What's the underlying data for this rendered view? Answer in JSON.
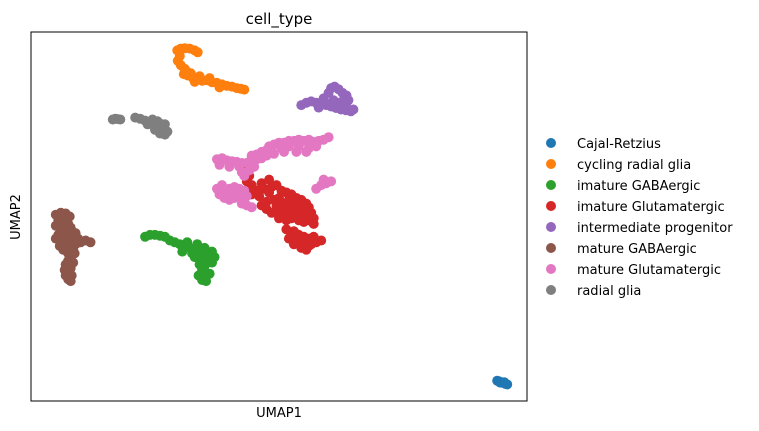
{
  "chart_data": {
    "type": "scatter",
    "title": "cell_type",
    "xlabel": "UMAP1",
    "ylabel": "UMAP2",
    "xlim": [
      0,
      100
    ],
    "ylim": [
      0,
      100
    ],
    "xticks": [],
    "yticks": [],
    "grid": false,
    "legend_placement": "right, outside plot",
    "series": [
      {
        "name": "Cajal-Retzius",
        "color": "#1f77b4",
        "points": [
          [
            94.0,
            5.5
          ],
          [
            94.4,
            5.3
          ],
          [
            94.8,
            5.1
          ],
          [
            95.2,
            4.9
          ],
          [
            95.6,
            4.7
          ],
          [
            96.0,
            4.5
          ],
          [
            94.6,
            5.0
          ],
          [
            95.4,
            5.1
          ]
        ]
      },
      {
        "name": "cycling radial glia",
        "color": "#ff7f0e",
        "points": [
          [
            29.5,
            95.0
          ],
          [
            30.2,
            95.5
          ],
          [
            31.0,
            95.6
          ],
          [
            32.0,
            95.5
          ],
          [
            33.0,
            95.0
          ],
          [
            33.6,
            94.5
          ],
          [
            30.0,
            93.5
          ],
          [
            29.6,
            92.2
          ],
          [
            30.2,
            91.0
          ],
          [
            31.0,
            90.0
          ],
          [
            31.5,
            89.2
          ],
          [
            30.8,
            88.6
          ],
          [
            31.6,
            88.2
          ],
          [
            32.2,
            88.8
          ],
          [
            32.6,
            87.6
          ],
          [
            33.5,
            87.4
          ],
          [
            34.5,
            86.8
          ],
          [
            35.5,
            86.9
          ],
          [
            36.5,
            86.4
          ],
          [
            37.5,
            86.2
          ],
          [
            38.5,
            85.8
          ],
          [
            39.5,
            85.4
          ],
          [
            40.5,
            85.2
          ],
          [
            41.5,
            84.8
          ],
          [
            42.3,
            84.6
          ],
          [
            43.0,
            84.4
          ],
          [
            34.0,
            88.0
          ],
          [
            36.0,
            87.5
          ],
          [
            33.0,
            86.5
          ],
          [
            38.0,
            85.0
          ]
        ]
      },
      {
        "name": "imature GABAergic",
        "color": "#2ca02c",
        "points": [
          [
            23.0,
            44.5
          ],
          [
            24.0,
            45.0
          ],
          [
            25.0,
            45.0
          ],
          [
            26.0,
            44.8
          ],
          [
            27.0,
            44.5
          ],
          [
            28.0,
            43.5
          ],
          [
            29.0,
            43.0
          ],
          [
            30.0,
            42.5
          ],
          [
            31.0,
            41.8
          ],
          [
            32.0,
            41.5
          ],
          [
            33.0,
            41.0
          ],
          [
            34.0,
            40.5
          ],
          [
            35.0,
            40.2
          ],
          [
            36.0,
            39.5
          ],
          [
            37.0,
            39.0
          ],
          [
            35.5,
            38.0
          ],
          [
            34.5,
            38.5
          ],
          [
            33.0,
            39.0
          ],
          [
            36.5,
            37.5
          ],
          [
            34.0,
            37.0
          ],
          [
            32.5,
            40.0
          ],
          [
            30.5,
            40.5
          ],
          [
            31.5,
            43.0
          ],
          [
            33.5,
            42.5
          ],
          [
            35.0,
            41.5
          ],
          [
            36.5,
            40.5
          ],
          [
            35.0,
            36.5
          ],
          [
            34.5,
            35.5
          ],
          [
            34.8,
            34.5
          ],
          [
            35.2,
            33.5
          ],
          [
            34.5,
            32.8
          ],
          [
            35.3,
            32.5
          ],
          [
            33.8,
            34.0
          ],
          [
            36.0,
            34.5
          ]
        ]
      },
      {
        "name": "imature Glutamatergic",
        "color": "#d62728",
        "points": [
          [
            43.5,
            63.0
          ],
          [
            44.0,
            61.0
          ],
          [
            43.5,
            59.5
          ],
          [
            44.5,
            58.5
          ],
          [
            43.5,
            57.0
          ],
          [
            44.5,
            56.0
          ],
          [
            46.0,
            55.5
          ],
          [
            47.5,
            54.0
          ],
          [
            49.0,
            54.5
          ],
          [
            49.5,
            53.0
          ],
          [
            47.0,
            57.5
          ],
          [
            48.5,
            58.0
          ],
          [
            49.5,
            58.5
          ],
          [
            48.0,
            56.5
          ],
          [
            50.5,
            57.0
          ],
          [
            51.5,
            56.5
          ],
          [
            52.5,
            56.0
          ],
          [
            53.5,
            55.0
          ],
          [
            54.5,
            54.5
          ],
          [
            55.5,
            53.5
          ],
          [
            56.0,
            52.5
          ],
          [
            55.5,
            51.5
          ],
          [
            54.5,
            51.0
          ],
          [
            53.5,
            50.5
          ],
          [
            52.5,
            51.0
          ],
          [
            51.5,
            50.5
          ],
          [
            50.5,
            51.5
          ],
          [
            49.5,
            52.0
          ],
          [
            53.0,
            53.0
          ],
          [
            51.0,
            53.5
          ],
          [
            52.0,
            54.5
          ],
          [
            46.5,
            53.0
          ],
          [
            47.5,
            52.0
          ],
          [
            48.5,
            51.0
          ],
          [
            50.0,
            49.5
          ],
          [
            51.5,
            49.0
          ],
          [
            52.5,
            49.5
          ],
          [
            54.0,
            49.0
          ],
          [
            55.0,
            48.5
          ],
          [
            56.0,
            49.0
          ],
          [
            57.0,
            49.5
          ],
          [
            56.5,
            51.0
          ],
          [
            45.5,
            57.0
          ],
          [
            46.5,
            59.0
          ],
          [
            48.0,
            60.0
          ],
          [
            50.0,
            55.0
          ],
          [
            52.0,
            52.5
          ],
          [
            54.0,
            52.5
          ],
          [
            55.0,
            50.0
          ],
          [
            57.0,
            48.0
          ],
          [
            51.5,
            46.5
          ],
          [
            52.5,
            45.0
          ],
          [
            53.5,
            44.0
          ],
          [
            54.5,
            43.5
          ],
          [
            55.5,
            43.0
          ],
          [
            56.5,
            42.5
          ],
          [
            57.5,
            43.0
          ],
          [
            58.5,
            43.5
          ],
          [
            57.0,
            44.5
          ],
          [
            55.0,
            44.5
          ],
          [
            53.0,
            46.0
          ],
          [
            52.0,
            44.0
          ],
          [
            53.0,
            42.5
          ],
          [
            54.5,
            41.5
          ],
          [
            55.5,
            41.0
          ],
          [
            56.0,
            42.0
          ],
          [
            54.0,
            45.0
          ],
          [
            56.0,
            44.0
          ]
        ]
      },
      {
        "name": "intermediate progenitor",
        "color": "#9467bd",
        "points": [
          [
            54.5,
            80.2
          ],
          [
            55.5,
            80.8
          ],
          [
            56.5,
            81.2
          ],
          [
            57.5,
            80.8
          ],
          [
            58.5,
            80.5
          ],
          [
            59.5,
            80.2
          ],
          [
            60.5,
            79.8
          ],
          [
            61.5,
            79.4
          ],
          [
            62.5,
            79.0
          ],
          [
            63.5,
            78.8
          ],
          [
            64.5,
            78.5
          ],
          [
            65.0,
            79.0
          ],
          [
            60.0,
            83.5
          ],
          [
            60.5,
            84.8
          ],
          [
            61.2,
            85.2
          ],
          [
            62.0,
            84.5
          ],
          [
            62.8,
            83.5
          ],
          [
            63.6,
            82.8
          ],
          [
            64.0,
            81.5
          ],
          [
            63.5,
            80.5
          ],
          [
            59.0,
            82.0
          ],
          [
            61.0,
            81.5
          ],
          [
            62.5,
            81.0
          ],
          [
            58.0,
            79.5
          ],
          [
            60.0,
            80.5
          ],
          [
            62.0,
            80.0
          ]
        ]
      },
      {
        "name": "mature GABAergic",
        "color": "#8c564b",
        "points": [
          [
            5.0,
            50.5
          ],
          [
            6.0,
            51.0
          ],
          [
            7.0,
            50.8
          ],
          [
            7.8,
            50.0
          ],
          [
            5.5,
            49.0
          ],
          [
            6.5,
            48.5
          ],
          [
            7.5,
            48.0
          ],
          [
            8.0,
            47.0
          ],
          [
            5.0,
            47.5
          ],
          [
            6.0,
            46.5
          ],
          [
            7.0,
            46.0
          ],
          [
            5.5,
            45.0
          ],
          [
            6.5,
            44.5
          ],
          [
            7.5,
            44.0
          ],
          [
            8.5,
            44.5
          ],
          [
            9.0,
            45.5
          ],
          [
            5.0,
            44.0
          ],
          [
            6.0,
            43.0
          ],
          [
            7.0,
            42.5
          ],
          [
            8.0,
            42.0
          ],
          [
            9.0,
            42.5
          ],
          [
            10.0,
            43.0
          ],
          [
            11.0,
            43.5
          ],
          [
            12.0,
            43.0
          ],
          [
            8.5,
            41.0
          ],
          [
            7.5,
            40.0
          ],
          [
            8.0,
            39.0
          ],
          [
            7.5,
            38.0
          ],
          [
            8.5,
            37.5
          ],
          [
            7.0,
            37.0
          ],
          [
            8.0,
            36.0
          ],
          [
            7.5,
            35.0
          ],
          [
            8.2,
            34.0
          ],
          [
            7.0,
            34.0
          ],
          [
            7.5,
            33.0
          ],
          [
            8.0,
            32.5
          ],
          [
            6.8,
            35.5
          ],
          [
            6.5,
            41.0
          ],
          [
            5.8,
            42.0
          ],
          [
            8.8,
            40.0
          ],
          [
            9.5,
            44.0
          ],
          [
            6.2,
            47.5
          ],
          [
            7.2,
            49.5
          ]
        ]
      },
      {
        "name": "mature Glutamatergic",
        "color": "#e377c2",
        "points": [
          [
            37.5,
            65.5
          ],
          [
            38.5,
            65.8
          ],
          [
            39.5,
            65.2
          ],
          [
            40.5,
            65.0
          ],
          [
            41.5,
            64.8
          ],
          [
            42.5,
            64.5
          ],
          [
            43.5,
            64.5
          ],
          [
            38.0,
            64.0
          ],
          [
            40.0,
            63.5
          ],
          [
            42.0,
            63.5
          ],
          [
            44.5,
            66.5
          ],
          [
            45.5,
            66.8
          ],
          [
            46.5,
            67.5
          ],
          [
            47.5,
            68.0
          ],
          [
            48.0,
            69.0
          ],
          [
            49.0,
            69.5
          ],
          [
            50.0,
            70.0
          ],
          [
            51.0,
            70.0
          ],
          [
            52.0,
            70.5
          ],
          [
            53.0,
            70.5
          ],
          [
            54.0,
            70.8
          ],
          [
            55.0,
            70.5
          ],
          [
            56.0,
            70.8
          ],
          [
            57.0,
            70.2
          ],
          [
            58.0,
            70.5
          ],
          [
            59.0,
            70.8
          ],
          [
            60.0,
            71.5
          ],
          [
            52.0,
            69.0
          ],
          [
            54.0,
            69.0
          ],
          [
            56.0,
            68.5
          ],
          [
            57.5,
            69.0
          ],
          [
            50.5,
            68.5
          ],
          [
            49.0,
            67.0
          ],
          [
            47.5,
            66.5
          ],
          [
            45.5,
            65.5
          ],
          [
            44.0,
            64.8
          ],
          [
            46.5,
            65.8
          ],
          [
            51.0,
            67.5
          ],
          [
            53.5,
            67.5
          ],
          [
            55.5,
            67.5
          ],
          [
            39.0,
            56.5
          ],
          [
            40.0,
            57.5
          ],
          [
            41.0,
            58.0
          ],
          [
            42.0,
            57.5
          ],
          [
            43.0,
            57.0
          ],
          [
            42.0,
            55.5
          ],
          [
            41.0,
            55.0
          ],
          [
            40.0,
            54.5
          ],
          [
            39.0,
            55.0
          ],
          [
            38.0,
            56.0
          ],
          [
            37.5,
            57.5
          ],
          [
            38.5,
            58.5
          ],
          [
            42.5,
            53.5
          ],
          [
            43.5,
            53.0
          ],
          [
            44.5,
            52.5
          ],
          [
            40.5,
            56.0
          ],
          [
            43.5,
            55.5
          ],
          [
            58.5,
            58.5
          ],
          [
            59.5,
            59.0
          ],
          [
            60.5,
            59.5
          ],
          [
            59.0,
            60.0
          ],
          [
            57.5,
            57.5
          ],
          [
            43.0,
            61.0
          ],
          [
            44.0,
            62.5
          ],
          [
            42.5,
            62.0
          ],
          [
            45.0,
            63.5
          ]
        ]
      },
      {
        "name": "radial glia",
        "color": "#7f7f7f",
        "points": [
          [
            16.5,
            76.3
          ],
          [
            17.0,
            76.5
          ],
          [
            17.5,
            76.4
          ],
          [
            18.0,
            76.3
          ],
          [
            21.0,
            76.8
          ],
          [
            22.0,
            76.5
          ],
          [
            23.0,
            76.0
          ],
          [
            24.0,
            75.5
          ],
          [
            25.0,
            75.0
          ],
          [
            26.0,
            75.2
          ],
          [
            27.0,
            75.0
          ],
          [
            24.5,
            76.3
          ],
          [
            23.5,
            75.0
          ],
          [
            25.5,
            74.0
          ],
          [
            26.5,
            73.5
          ],
          [
            27.5,
            73.0
          ],
          [
            25.0,
            73.5
          ],
          [
            26.0,
            72.5
          ],
          [
            27.0,
            72.2
          ],
          [
            25.5,
            75.8
          ]
        ]
      }
    ]
  }
}
